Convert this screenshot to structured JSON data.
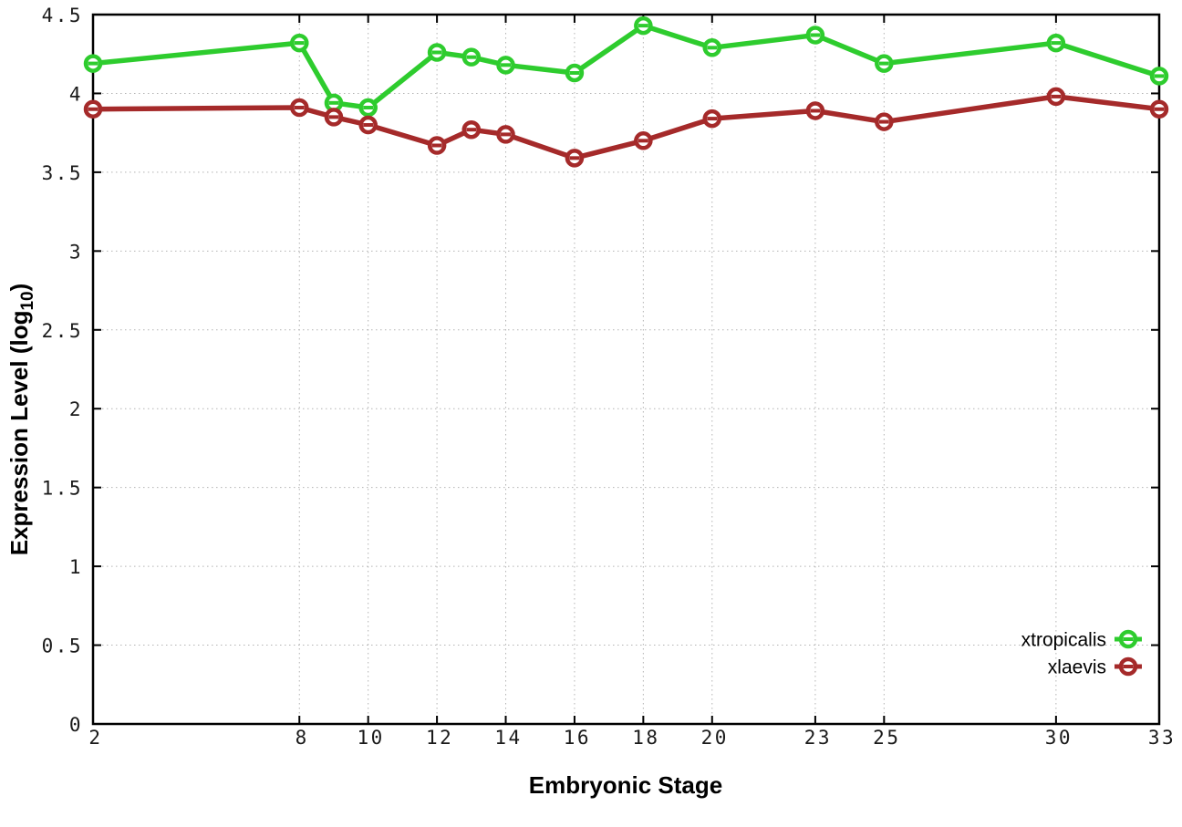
{
  "chart_data": {
    "type": "line",
    "title": "",
    "xlabel": "Embryonic Stage",
    "ylabel": "Expression Level (log10)",
    "ylabel_parts": {
      "pre": "Expression Level (log",
      "sub": "10",
      "post": ")"
    },
    "x": [
      2,
      8,
      9,
      10,
      12,
      13,
      14,
      16,
      18,
      20,
      23,
      25,
      30,
      33
    ],
    "series": [
      {
        "name": "xtropicalis",
        "color": "#2ecc2e",
        "marker": "open-circle-with-error-dash",
        "values": [
          4.19,
          4.32,
          3.94,
          3.91,
          4.26,
          4.23,
          4.18,
          4.13,
          4.43,
          4.29,
          4.37,
          4.19,
          4.32,
          4.11
        ]
      },
      {
        "name": "xlaevis",
        "color": "#a52a2a",
        "marker": "open-circle-with-error-dash",
        "values": [
          3.9,
          3.91,
          3.85,
          3.8,
          3.67,
          3.77,
          3.74,
          3.59,
          3.7,
          3.84,
          3.89,
          3.82,
          3.98,
          3.9
        ]
      }
    ],
    "xlim": [
      2,
      33
    ],
    "ylim": [
      0,
      4.5
    ],
    "xticks": [
      2,
      8,
      10,
      12,
      14,
      16,
      18,
      20,
      23,
      25,
      30,
      33
    ],
    "xtick_labels": [
      "2",
      "8",
      "10",
      "12",
      "14",
      "16",
      "18",
      "20",
      "23",
      "25",
      "30",
      "33"
    ],
    "yticks": [
      0,
      0.5,
      1,
      1.5,
      2,
      2.5,
      3,
      3.5,
      4,
      4.5
    ],
    "ytick_labels": [
      "0",
      "0.5",
      "1",
      "1.5",
      "2",
      "2.5",
      "3",
      "3.5",
      "4",
      "4.5"
    ],
    "grid": true,
    "grid_style": "dotted",
    "legend": {
      "position": "bottom-right",
      "entries": [
        "xtropicalis",
        "xlaevis"
      ]
    }
  },
  "colors": {
    "background": "#ffffff",
    "border": "#000000",
    "grid": "#b3b3b3",
    "tick_label": "#1a1a1a",
    "series_green": "#2ecc2e",
    "series_red": "#a52a2a"
  }
}
